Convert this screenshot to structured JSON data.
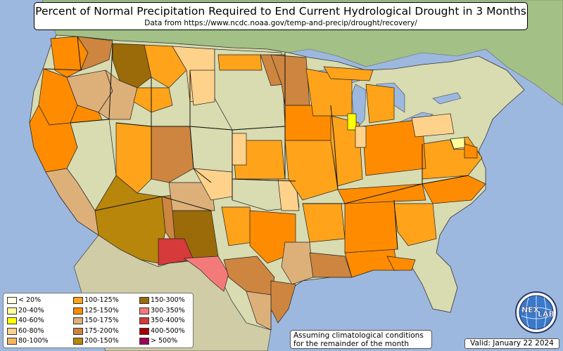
{
  "title": "Percent of Normal Precipitation Required to End Current Hydrological Drought in 3 Months",
  "subtitle": "Data from https://www.ncdc.noaa.gov/temp-and-precip/drought/recovery/",
  "legend": [
    {
      "label": "< 20%",
      "color": "#ffffe0"
    },
    {
      "label": "20-40%",
      "color": "#ffff99"
    },
    {
      "label": "40-60%",
      "color": "#ffff00"
    },
    {
      "label": "60-80%",
      "color": "#ffd28c"
    },
    {
      "label": "80-100%",
      "color": "#f5b561"
    },
    {
      "label": "100-125%",
      "color": "#ffa31a"
    },
    {
      "label": "125-150%",
      "color": "#ff8c00"
    },
    {
      "label": "150-175%",
      "color": "#ddb07a"
    },
    {
      "label": "175-200%",
      "color": "#cd853f"
    },
    {
      "label": "200-150%",
      "color": "#b8860b"
    },
    {
      "label": "150-300%",
      "color": "#9b6b0a"
    },
    {
      "label": "300-350%",
      "color": "#f47a7a"
    },
    {
      "label": "350-400%",
      "color": "#d63a3a"
    },
    {
      "label": "400-500%",
      "color": "#a30000"
    },
    {
      "label": "> 500%",
      "color": "#a0005a"
    }
  ],
  "note": {
    "line1": "Assuming climatological conditions",
    "line2": "for the remainder of the month"
  },
  "valid": "Valid: January 22 2024",
  "logo": {
    "icon": "nexlab-globe-icon",
    "text": "NEX",
    "text2": "LAB"
  },
  "colors": {
    "ocean": "#9db8df",
    "land": "#d8dcb2",
    "land_north": "#bccf9c",
    "mexico": "#c8c8a4",
    "canada": "#9fbf80"
  }
}
